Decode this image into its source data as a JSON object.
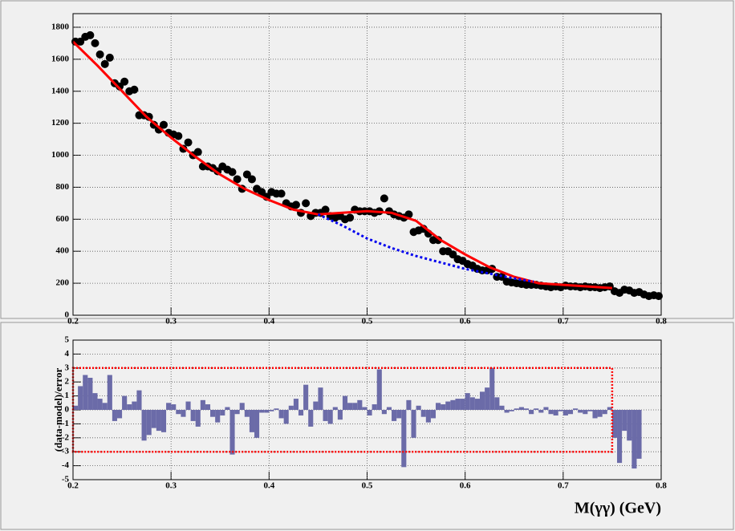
{
  "chart_data": [
    {
      "type": "scatter",
      "xlim": [
        0.2,
        0.8
      ],
      "xticks": [
        0.2,
        0.3,
        0.4,
        0.5,
        0.6,
        0.7,
        0.8
      ],
      "ylim": [
        0,
        1885
      ],
      "yticks": [
        0,
        200,
        400,
        600,
        800,
        1000,
        1200,
        1400,
        1600,
        1800
      ],
      "grid": true,
      "series": [
        {
          "type": "points",
          "color": "#000000",
          "x": [
            0.2025,
            0.2075,
            0.2125,
            0.2175,
            0.2225,
            0.2275,
            0.2325,
            0.2375,
            0.2425,
            0.2475,
            0.2525,
            0.2575,
            0.2625,
            0.2675,
            0.2725,
            0.2775,
            0.2825,
            0.2875,
            0.2925,
            0.2975,
            0.3025,
            0.3075,
            0.3125,
            0.3175,
            0.3225,
            0.3275,
            0.3325,
            0.3375,
            0.3425,
            0.3475,
            0.3525,
            0.3575,
            0.3625,
            0.3675,
            0.3725,
            0.3775,
            0.3825,
            0.3875,
            0.3925,
            0.3975,
            0.4025,
            0.4075,
            0.4125,
            0.4175,
            0.4225,
            0.4275,
            0.4325,
            0.4375,
            0.4425,
            0.4475,
            0.4525,
            0.4575,
            0.4625,
            0.4675,
            0.4725,
            0.4775,
            0.4825,
            0.4875,
            0.4925,
            0.4975,
            0.5025,
            0.5075,
            0.5125,
            0.5175,
            0.5225,
            0.5275,
            0.5325,
            0.5375,
            0.5425,
            0.5475,
            0.5525,
            0.5575,
            0.5625,
            0.5675,
            0.5725,
            0.5775,
            0.5825,
            0.5875,
            0.5925,
            0.5975,
            0.6025,
            0.6075,
            0.6125,
            0.6175,
            0.6225,
            0.6275,
            0.6325,
            0.6375,
            0.6425,
            0.6475,
            0.6525,
            0.6575,
            0.6625,
            0.6675,
            0.6725,
            0.6775,
            0.6825,
            0.6875,
            0.6925,
            0.6975,
            0.7025,
            0.7075,
            0.7125,
            0.7175,
            0.7225,
            0.7275,
            0.7325,
            0.7375,
            0.7425,
            0.7475,
            0.7525,
            0.7575,
            0.7625,
            0.7675,
            0.7725,
            0.7775,
            0.7825,
            0.7875,
            0.7925,
            0.7975
          ],
          "values": [
            1710,
            1710,
            1740,
            1750,
            1700,
            1630,
            1570,
            1610,
            1450,
            1430,
            1460,
            1400,
            1410,
            1250,
            1250,
            1240,
            1190,
            1160,
            1190,
            1140,
            1130,
            1120,
            1040,
            1080,
            1000,
            1020,
            930,
            930,
            920,
            900,
            930,
            910,
            895,
            850,
            790,
            880,
            850,
            790,
            770,
            740,
            770,
            760,
            760,
            700,
            680,
            690,
            640,
            700,
            620,
            640,
            640,
            660,
            620,
            610,
            620,
            600,
            610,
            660,
            650,
            650,
            650,
            640,
            650,
            730,
            650,
            630,
            620,
            610,
            630,
            520,
            530,
            540,
            510,
            470,
            470,
            400,
            400,
            380,
            350,
            340,
            320,
            310,
            290,
            280,
            280,
            290,
            240,
            240,
            210,
            205,
            200,
            195,
            190,
            190,
            190,
            185,
            180,
            175,
            180,
            175,
            185,
            180,
            180,
            175,
            180,
            175,
            175,
            170,
            175,
            180,
            150,
            140,
            160,
            155,
            140,
            145,
            130,
            120,
            125,
            120
          ]
        },
        {
          "type": "line",
          "color": "#ff0000",
          "dash": false,
          "x": [
            0.2,
            0.225,
            0.25,
            0.275,
            0.3,
            0.325,
            0.35,
            0.375,
            0.4,
            0.425,
            0.45,
            0.475,
            0.5,
            0.525,
            0.55,
            0.575,
            0.6,
            0.625,
            0.65,
            0.675,
            0.7,
            0.725,
            0.75
          ],
          "values": [
            1710,
            1560,
            1400,
            1240,
            1110,
            990,
            880,
            790,
            720,
            660,
            630,
            640,
            650,
            640,
            590,
            470,
            380,
            300,
            240,
            200,
            190,
            180,
            170
          ]
        },
        {
          "type": "line",
          "color": "#0000ee",
          "dash": true,
          "x": [
            0.45,
            0.475,
            0.5,
            0.525,
            0.55,
            0.575,
            0.6,
            0.625,
            0.65,
            0.67
          ],
          "values": [
            630,
            560,
            480,
            420,
            370,
            330,
            290,
            260,
            230,
            210
          ]
        }
      ]
    },
    {
      "type": "histogram",
      "ylabel": "(data-model)/error",
      "xlabel": "M(γγ) (GeV)",
      "xlim": [
        0.2,
        0.8
      ],
      "xticks": [
        0.2,
        0.3,
        0.4,
        0.5,
        0.6,
        0.7,
        0.8
      ],
      "ylim": [
        -5,
        5
      ],
      "yticks": [
        -5,
        -4,
        -3,
        -2,
        -1,
        0,
        1,
        2,
        3,
        4,
        5
      ],
      "grid": true,
      "color": "#6b6ba8",
      "box": {
        "x": [
          0.2,
          0.75
        ],
        "y": [
          -3,
          3
        ],
        "color": "#ff0000"
      },
      "bins": [
        0.2,
        0.205,
        0.21,
        0.215,
        0.22,
        0.225,
        0.23,
        0.235,
        0.24,
        0.245,
        0.25,
        0.255,
        0.26,
        0.265,
        0.27,
        0.275,
        0.28,
        0.285,
        0.29,
        0.295,
        0.3,
        0.305,
        0.31,
        0.315,
        0.32,
        0.325,
        0.33,
        0.335,
        0.34,
        0.345,
        0.35,
        0.355,
        0.36,
        0.365,
        0.37,
        0.375,
        0.38,
        0.385,
        0.39,
        0.395,
        0.4,
        0.405,
        0.41,
        0.415,
        0.42,
        0.425,
        0.43,
        0.435,
        0.44,
        0.445,
        0.45,
        0.455,
        0.46,
        0.465,
        0.47,
        0.475,
        0.48,
        0.485,
        0.49,
        0.495,
        0.5,
        0.505,
        0.51,
        0.515,
        0.52,
        0.525,
        0.53,
        0.535,
        0.54,
        0.545,
        0.55,
        0.555,
        0.56,
        0.565,
        0.57,
        0.575,
        0.58,
        0.585,
        0.59,
        0.595,
        0.6,
        0.605,
        0.61,
        0.615,
        0.62,
        0.625,
        0.63,
        0.635,
        0.64,
        0.645,
        0.65,
        0.655,
        0.66,
        0.665,
        0.67,
        0.675,
        0.68,
        0.685,
        0.69,
        0.695,
        0.7,
        0.705,
        0.71,
        0.715,
        0.72,
        0.725,
        0.73,
        0.735,
        0.74,
        0.745,
        0.75,
        0.755,
        0.76,
        0.765,
        0.77,
        0.775,
        0.78,
        0.785,
        0.79,
        0.795,
        0.8
      ],
      "values": [
        0.3,
        1.7,
        2.5,
        2.3,
        1.2,
        0.8,
        0.5,
        2.5,
        -0.8,
        -0.6,
        1.0,
        0.4,
        0.6,
        1.4,
        -2.2,
        -1.8,
        -1.3,
        -1.5,
        -1.6,
        0.5,
        0.4,
        -0.3,
        -0.5,
        0.6,
        -0.8,
        -1.2,
        0.7,
        0.4,
        -0.5,
        -0.9,
        -0.4,
        0.2,
        -3.2,
        -0.3,
        0.5,
        -0.5,
        -1.6,
        -2.0,
        -0.2,
        -0.2,
        -0.1,
        0.1,
        -0.6,
        -1.0,
        0.3,
        0.8,
        -0.4,
        1.8,
        -1.2,
        0.6,
        1.6,
        -0.8,
        -1.0,
        0.2,
        -0.7,
        1.0,
        0.5,
        0.5,
        0.7,
        0.2,
        -0.4,
        0.4,
        2.9,
        -0.3,
        0.2,
        -0.8,
        -0.6,
        -4.1,
        0.7,
        -2.0,
        0.3,
        -0.5,
        -0.9,
        -0.6,
        0.5,
        0.4,
        0.6,
        0.7,
        0.8,
        0.8,
        1.2,
        0.9,
        0.8,
        1.3,
        1.6,
        3.0,
        0.9,
        0.3,
        -0.2,
        -0.1,
        0.1,
        0.2,
        0.1,
        -0.3,
        0.1,
        -0.2,
        0.2,
        -0.3,
        -0.4,
        -0.1,
        -0.4,
        -0.3,
        0.1,
        -0.2,
        -0.3,
        -0.1,
        -0.6,
        -0.5,
        -0.3,
        0.2,
        -2.0,
        -3.8,
        -1.5,
        -2.2,
        -4.2,
        -3.5,
        null,
        null,
        null,
        null
      ]
    }
  ]
}
